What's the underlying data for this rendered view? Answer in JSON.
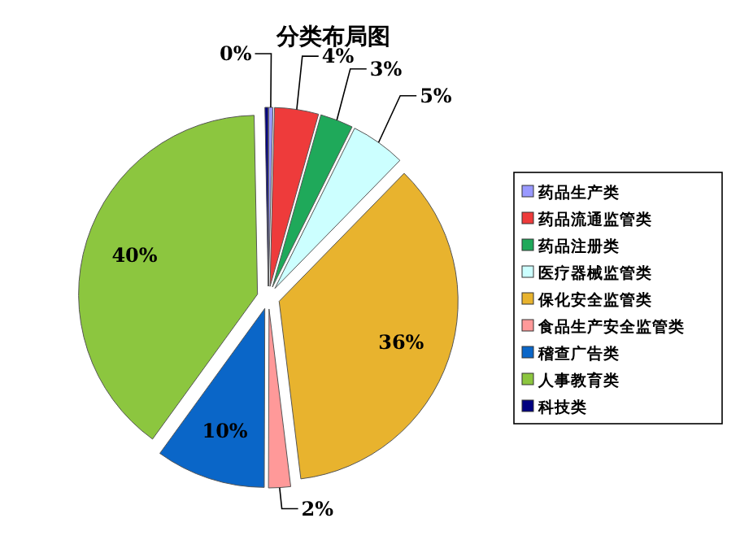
{
  "chart_data": {
    "type": "pie",
    "title": "分类布局图",
    "categories": [
      "药品生产类",
      "药品流通监管类",
      "药品注册类",
      "医疗器械监管类",
      "保化安全监管类",
      "食品生产安全监管类",
      "稽查广告类",
      "人事教育类",
      "科技类"
    ],
    "values": [
      0.4,
      4,
      3,
      5,
      36,
      2,
      10,
      40,
      0.3
    ],
    "value_labels": [
      "0%",
      "4%",
      "3%",
      "5%",
      "36%",
      "2%",
      "10%",
      "40%",
      null
    ],
    "colors": [
      "#9999ff",
      "#ee3b3b",
      "#1fa95a",
      "#ccffff",
      "#e8b32e",
      "#ff9999",
      "#0a66c8",
      "#8cc63f",
      "#000080"
    ],
    "legend": "right"
  }
}
